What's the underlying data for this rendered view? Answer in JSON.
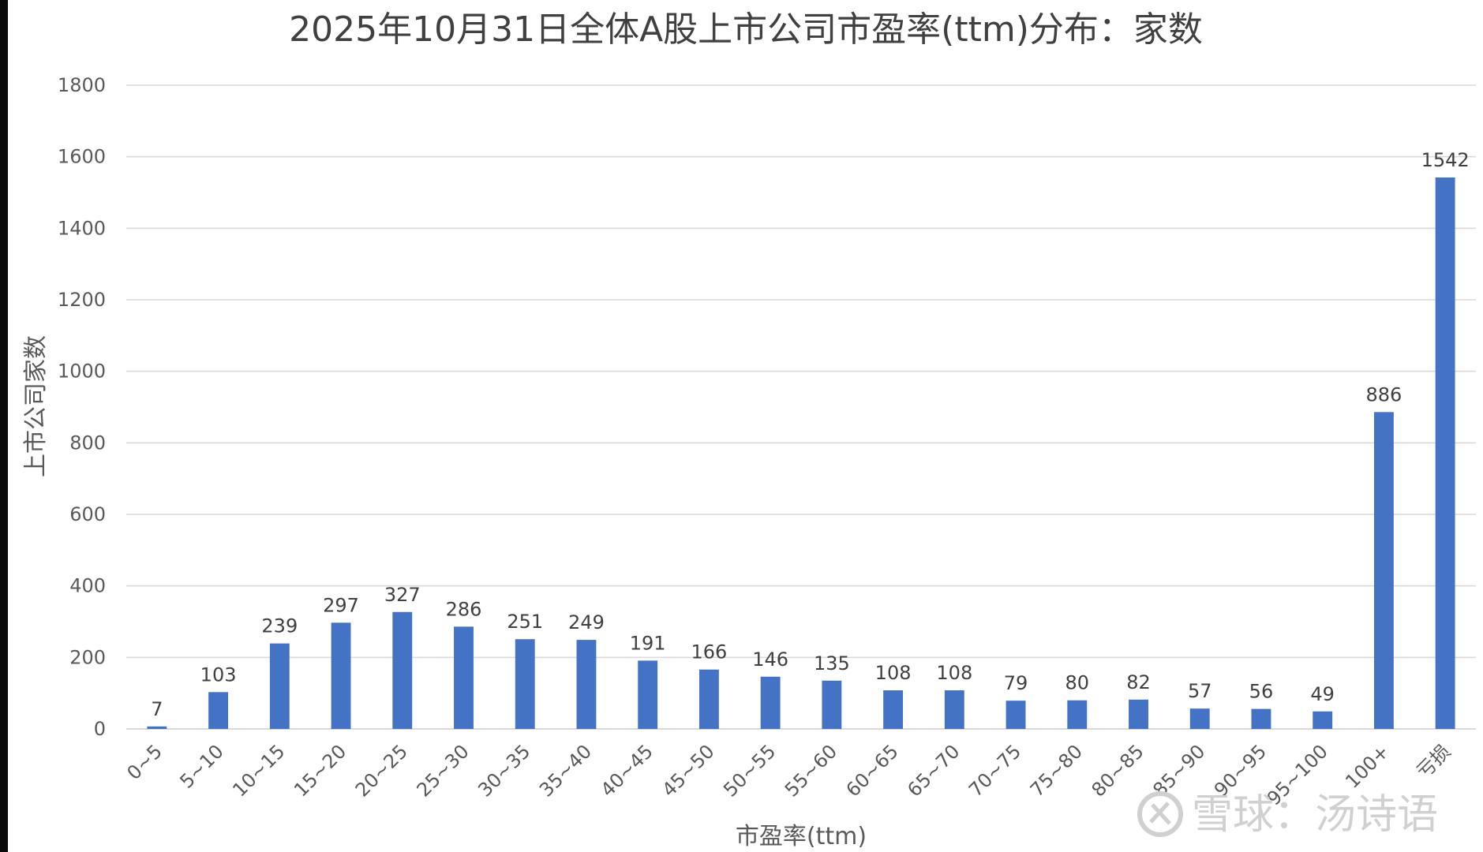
{
  "chart_data": {
    "type": "bar",
    "title": "2025年10月31日全体A股上市公司市盈率(ttm)分布：家数",
    "xlabel": "市盈率(ttm)",
    "ylabel": "上市公司家数",
    "categories": [
      "0~5",
      "5~10",
      "10~15",
      "15~20",
      "20~25",
      "25~30",
      "30~35",
      "35~40",
      "40~45",
      "45~50",
      "50~55",
      "55~60",
      "60~65",
      "65~70",
      "70~75",
      "75~80",
      "80~85",
      "85~90",
      "90~95",
      "95~100",
      "100+",
      "亏损"
    ],
    "values": [
      7,
      103,
      239,
      297,
      327,
      286,
      251,
      249,
      191,
      166,
      146,
      135,
      108,
      108,
      79,
      80,
      82,
      57,
      56,
      49,
      886,
      1542
    ],
    "ylim": [
      0,
      1800
    ],
    "yticks": [
      0,
      200,
      400,
      600,
      800,
      1000,
      1200,
      1400,
      1600,
      1800
    ],
    "grid": true,
    "data_labels": true,
    "bar_color": "#4472C4",
    "grid_color": "#d9d9d9"
  },
  "watermark": {
    "text": "雪球：汤诗语"
  }
}
